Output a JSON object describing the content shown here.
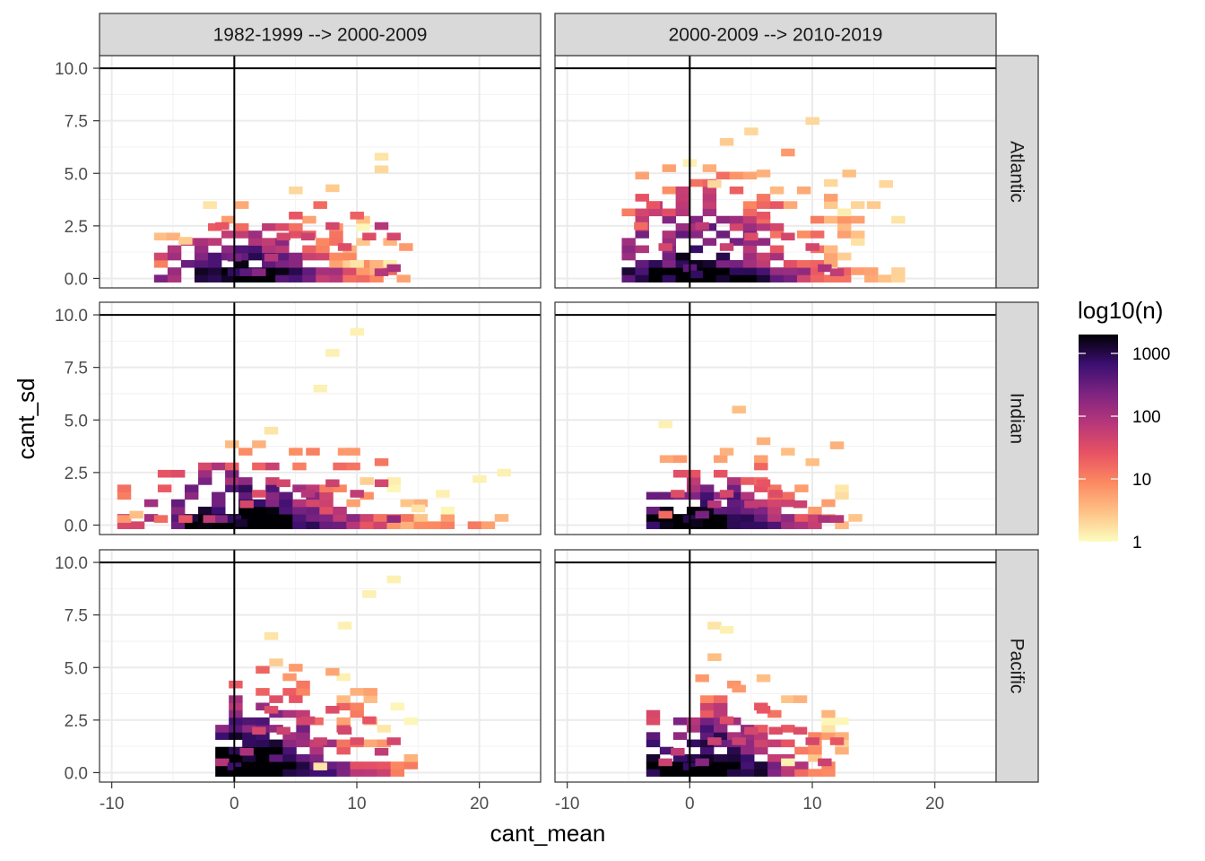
{
  "chart_data": {
    "type": "heatmap",
    "xlabel": "cant_mean",
    "ylabel": "cant_sd",
    "xlim": [
      -11,
      25
    ],
    "ylim": [
      -0.45,
      10.6
    ],
    "x_ticks": [
      -10,
      0,
      10,
      20
    ],
    "x_tick_labels": [
      "-10",
      "0",
      "10",
      "20"
    ],
    "y_ticks": [
      0,
      2.5,
      5,
      7.5,
      10
    ],
    "y_tick_labels": [
      "0.0",
      "2.5",
      "5.0",
      "7.5",
      "10.0"
    ],
    "reference_lines": {
      "x": 0,
      "y": 10
    },
    "grid": true,
    "bin_size": {
      "x": 1.1,
      "y": 0.35
    },
    "columns": [
      "1982-1999 --> 2000-2009",
      "2000-2009 --> 2010-2019"
    ],
    "rows": [
      "Atlantic",
      "Indian",
      "Pacific"
    ],
    "legend": {
      "title": "log10(n)",
      "position": "right",
      "scale": "log10",
      "range": [
        1,
        2000
      ],
      "breaks": [
        1,
        10,
        100,
        1000
      ],
      "break_labels": [
        "1",
        "10",
        "100",
        "1000"
      ],
      "colors": [
        "#fcfdbf",
        "#fec287",
        "#fc8961",
        "#e75263",
        "#b73779",
        "#7e2482",
        "#3b0f70",
        "#000004"
      ]
    },
    "panels": [
      {
        "row": "Atlantic",
        "column": "1982-1999 --> 2000-2009",
        "x_range": [
          -6,
          15
        ],
        "y_range": [
          0,
          4.5
        ],
        "peak": [
          0.5,
          0.3
        ],
        "peak_log10n": 2.9,
        "spread": [
          5,
          1.5
        ],
        "cells_log10n": [
          [
            -6,
            2,
            0.5
          ],
          [
            -5,
            2,
            0.6
          ],
          [
            -4,
            1.8,
            0.4
          ],
          [
            -2,
            3.5,
            0.2
          ],
          [
            -1,
            2.5,
            1.4
          ],
          [
            0,
            1,
            2.4
          ],
          [
            0,
            0.3,
            2.9
          ],
          [
            1,
            0.3,
            2.6
          ],
          [
            2,
            0.3,
            2.3
          ],
          [
            3,
            1,
            1.9
          ],
          [
            4,
            2,
            1.6
          ],
          [
            5,
            3,
            1.4
          ],
          [
            6,
            2,
            1.7
          ],
          [
            7,
            3.5,
            1.2
          ],
          [
            8,
            2.5,
            1.6
          ],
          [
            9,
            1.5,
            1.5
          ],
          [
            10,
            3,
            1.3
          ],
          [
            11,
            2,
            1.5
          ],
          [
            12,
            2.5,
            1.9
          ],
          [
            12,
            0.3,
            1.9
          ],
          [
            13,
            2,
            1.6
          ],
          [
            13,
            0.5,
            2.0
          ],
          [
            12,
            5.8,
            0.2
          ],
          [
            12,
            5.2,
            0.3
          ],
          [
            5,
            4.2,
            0.3
          ],
          [
            8,
            4.3,
            0.4
          ],
          [
            10,
            0.7,
            0.2
          ],
          [
            14,
            1.5,
            0.8
          ]
        ]
      },
      {
        "row": "Atlantic",
        "column": "2000-2009 --> 2010-2019",
        "x_range": [
          -5,
          18
        ],
        "y_range": [
          0,
          7.8
        ],
        "peak": [
          0.5,
          0.3
        ],
        "peak_log10n": 2.9,
        "spread": [
          6,
          2.5
        ],
        "cells_log10n": [
          [
            -4,
            2.5,
            1.2
          ],
          [
            -3,
            3.5,
            1.4
          ],
          [
            -2,
            1.5,
            1.6
          ],
          [
            0,
            0.5,
            2.6
          ],
          [
            0.5,
            0.2,
            2.9
          ],
          [
            1,
            2.5,
            1.8
          ],
          [
            3,
            1.5,
            1.7
          ],
          [
            5,
            2,
            1.5
          ],
          [
            6,
            3,
            1.4
          ],
          [
            8,
            2,
            1.6
          ],
          [
            10,
            1.5,
            1.6
          ],
          [
            11,
            0.5,
            2.0
          ],
          [
            12,
            0.3,
            1.8
          ],
          [
            3,
            6.5,
            0.4
          ],
          [
            5,
            7,
            0.3
          ],
          [
            6,
            5,
            0.6
          ],
          [
            8,
            6,
            0.8
          ],
          [
            10,
            7.5,
            0.3
          ],
          [
            13,
            5,
            0.5
          ],
          [
            15,
            3.5,
            0.4
          ],
          [
            17,
            2.8,
            0.2
          ],
          [
            16,
            4.5,
            0.3
          ],
          [
            0,
            5.5,
            0.1
          ],
          [
            2,
            4.5,
            0.3
          ]
        ]
      },
      {
        "row": "Indian",
        "column": "1982-1999 --> 2000-2009",
        "x_range": [
          -9,
          23
        ],
        "y_range": [
          0,
          9.2
        ],
        "peak": [
          0.5,
          0.3
        ],
        "peak_log10n": 3.1,
        "spread": [
          6,
          1.8
        ],
        "cells_log10n": [
          [
            -9,
            0.3,
            0.8
          ],
          [
            -8,
            0.5,
            0.5
          ],
          [
            -6,
            0.3,
            1.2
          ],
          [
            -4,
            0.3,
            1.4
          ],
          [
            -2,
            0.3,
            1.8
          ],
          [
            -1,
            0.3,
            2.3
          ],
          [
            0,
            0.3,
            2.9
          ],
          [
            0.5,
            0.1,
            3.1
          ],
          [
            1,
            1,
            1.6
          ],
          [
            2,
            1.5,
            1.5
          ],
          [
            4,
            2,
            1.6
          ],
          [
            6,
            1.5,
            1.9
          ],
          [
            8,
            2,
            1.7
          ],
          [
            10,
            1.5,
            1.8
          ],
          [
            12,
            2,
            1.6
          ],
          [
            13,
            0.3,
            2.2
          ],
          [
            5,
            3.5,
            0.9
          ],
          [
            9,
            3.5,
            0.8
          ],
          [
            12,
            3,
            1.1
          ],
          [
            3,
            4.5,
            0.2
          ],
          [
            7,
            6.5,
            0.1
          ],
          [
            8,
            8.2,
            0.1
          ],
          [
            10,
            9.2,
            0.1
          ],
          [
            20,
            2.2,
            0.1
          ],
          [
            22,
            2.5,
            0.1
          ],
          [
            15,
            0.8,
            0.2
          ],
          [
            17,
            1.5,
            0.1
          ]
        ]
      },
      {
        "row": "Indian",
        "column": "2000-2009 --> 2010-2019",
        "x_range": [
          -3,
          14
        ],
        "y_range": [
          0,
          6.2
        ],
        "peak": [
          0.5,
          0.3
        ],
        "peak_log10n": 3.2,
        "spread": [
          5,
          1.5
        ],
        "cells_log10n": [
          [
            -2,
            0.5,
            1.2
          ],
          [
            -1,
            1.5,
            1.5
          ],
          [
            0,
            0.3,
            3.0
          ],
          [
            0.5,
            0.1,
            3.2
          ],
          [
            1,
            0.5,
            2.4
          ],
          [
            2,
            1,
            1.9
          ],
          [
            3,
            1.5,
            1.6
          ],
          [
            5,
            1,
            1.8
          ],
          [
            6,
            2,
            1.4
          ],
          [
            7,
            1.5,
            1.5
          ],
          [
            9,
            1,
            1.7
          ],
          [
            11,
            0.3,
            2.0
          ],
          [
            12,
            0.3,
            1.9
          ],
          [
            4,
            5.5,
            0.5
          ],
          [
            6,
            4,
            0.6
          ],
          [
            8,
            3.5,
            0.5
          ],
          [
            10,
            3,
            0.5
          ],
          [
            12,
            3.8,
            0.6
          ],
          [
            -2,
            4.8,
            0.1
          ],
          [
            3,
            3.5,
            0.6
          ]
        ]
      },
      {
        "row": "Pacific",
        "column": "1982-1999 --> 2000-2009",
        "x_range": [
          -1,
          15
        ],
        "y_range": [
          0,
          9.5
        ],
        "peak": [
          0.5,
          0.3
        ],
        "peak_log10n": 3.3,
        "spread": [
          6,
          2.2
        ],
        "cells_log10n": [
          [
            -1,
            0.5,
            1.9
          ],
          [
            0,
            0.3,
            2.8
          ],
          [
            0.5,
            0.1,
            3.3
          ],
          [
            1,
            1,
            2.0
          ],
          [
            2,
            2,
            1.6
          ],
          [
            3,
            3,
            1.5
          ],
          [
            4,
            2,
            1.7
          ],
          [
            5,
            3.5,
            1.4
          ],
          [
            6,
            2.5,
            1.6
          ],
          [
            7,
            1.5,
            1.7
          ],
          [
            8,
            3,
            1.5
          ],
          [
            9,
            2,
            1.6
          ],
          [
            10,
            1.5,
            1.5
          ],
          [
            11,
            2.5,
            1.4
          ],
          [
            12,
            1,
            1.8
          ],
          [
            13,
            1.5,
            1.6
          ],
          [
            5,
            5,
            0.8
          ],
          [
            8,
            4.8,
            0.7
          ],
          [
            3,
            6.5,
            0.2
          ],
          [
            9,
            7,
            0.1
          ],
          [
            11,
            8.5,
            0.1
          ],
          [
            13,
            9.2,
            0.1
          ],
          [
            7,
            0.3,
            0.2
          ]
        ]
      },
      {
        "row": "Pacific",
        "column": "2000-2009 --> 2010-2019",
        "x_range": [
          -3,
          13
        ],
        "y_range": [
          0,
          7.2
        ],
        "peak": [
          0.5,
          0.3
        ],
        "peak_log10n": 3.3,
        "spread": [
          5,
          1.8
        ],
        "cells_log10n": [
          [
            -2,
            0.5,
            1.7
          ],
          [
            -1,
            1,
            1.8
          ],
          [
            0,
            0.3,
            2.9
          ],
          [
            0.5,
            0.1,
            3.3
          ],
          [
            1,
            0.5,
            2.3
          ],
          [
            2,
            1.5,
            1.7
          ],
          [
            3,
            2.5,
            1.5
          ],
          [
            4,
            1.5,
            1.7
          ],
          [
            5,
            2,
            1.6
          ],
          [
            6,
            3,
            1.4
          ],
          [
            7,
            2,
            1.5
          ],
          [
            9,
            2,
            1.5
          ],
          [
            10,
            1.5,
            1.6
          ],
          [
            11,
            0.5,
            1.7
          ],
          [
            12,
            1.5,
            1.4
          ],
          [
            1,
            4.5,
            0.8
          ],
          [
            2,
            5.5,
            0.5
          ],
          [
            4,
            4,
            0.8
          ],
          [
            6,
            4.5,
            0.5
          ],
          [
            9,
            3.5,
            0.6
          ],
          [
            2,
            7,
            0.2
          ],
          [
            3,
            6.8,
            0.1
          ],
          [
            8,
            0.5,
            0.1
          ]
        ]
      }
    ]
  }
}
